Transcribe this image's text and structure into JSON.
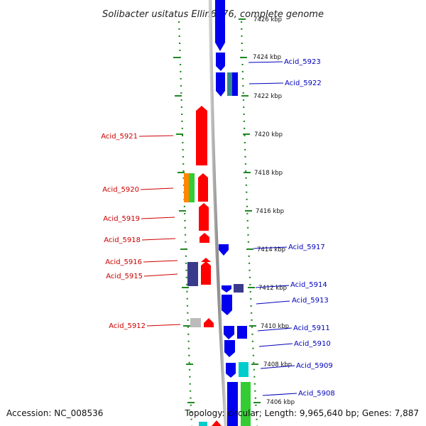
{
  "title": "Solibacter usitatus Ellin6076, complete genome",
  "footer": {
    "accession": "Accession: NC_008536",
    "topology": "Topology: circular; Length: 9,965,640 bp; Genes: 7,887"
  },
  "scale_ticks": [
    "7426 kbp",
    "7424 kbp",
    "7422 kbp",
    "7420 kbp",
    "7418 kbp",
    "7416 kbp",
    "7414 kbp",
    "7412 kbp",
    "7410 kbp",
    "7408 kbp",
    "7406 kbp"
  ],
  "colors": {
    "forward_strand_label": "#cc0000",
    "reverse_strand_label": "#0000bb",
    "red_gene": "#ff0000",
    "blue_gene": "#0000ee",
    "navy_gene": "#3a3a8c",
    "cyan_gene": "#00cccc",
    "green_gene": "#33cc33",
    "orange_gene": "#ff8800",
    "gray_gene": "#bbbbbb",
    "backbone": "#999999",
    "tick_green": "#228822"
  },
  "genes_left": [
    "Acid_5921",
    "Acid_5920",
    "Acid_5919",
    "Acid_5918",
    "Acid_5916",
    "Acid_5915",
    "Acid_5912"
  ],
  "genes_right": [
    "Acid_5923",
    "Acid_5922",
    "Acid_5917",
    "Acid_5914",
    "Acid_5913",
    "Acid_5911",
    "Acid_5910",
    "Acid_5909",
    "Acid_5908"
  ]
}
